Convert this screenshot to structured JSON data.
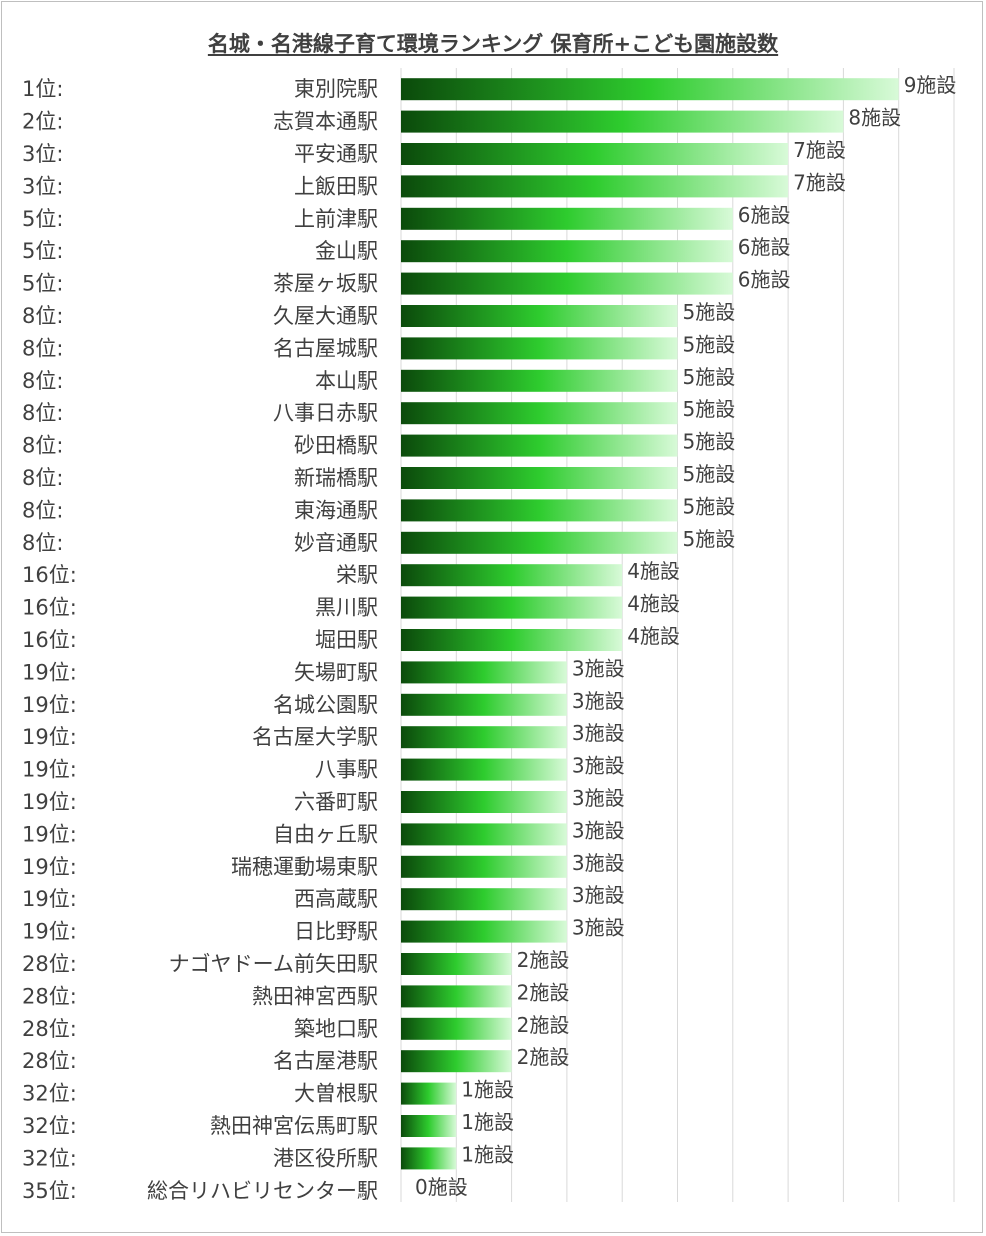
{
  "title": "名城・名港線子育て環境ランキング 保育所+こども園施設数",
  "colors": {
    "bar_dark": "#0b4a0b",
    "bar_mid": "#2ecc2e",
    "bar_light": "#d8fad8",
    "grid": "#d9d9d9",
    "text": "#404040"
  },
  "chart_data": {
    "type": "bar",
    "orientation": "horizontal",
    "title": "名城・名港線子育て環境ランキング 保育所+こども園施設数",
    "value_suffix": "施設",
    "xlim": [
      0,
      10
    ],
    "grid": true,
    "rows": [
      {
        "rank": "1位:",
        "station": "東別院駅",
        "value": 9
      },
      {
        "rank": "2位:",
        "station": "志賀本通駅",
        "value": 8
      },
      {
        "rank": "3位:",
        "station": "平安通駅",
        "value": 7
      },
      {
        "rank": "3位:",
        "station": "上飯田駅",
        "value": 7
      },
      {
        "rank": "5位:",
        "station": "上前津駅",
        "value": 6
      },
      {
        "rank": "5位:",
        "station": "金山駅",
        "value": 6
      },
      {
        "rank": "5位:",
        "station": "茶屋ヶ坂駅",
        "value": 6
      },
      {
        "rank": "8位:",
        "station": "久屋大通駅",
        "value": 5
      },
      {
        "rank": "8位:",
        "station": "名古屋城駅",
        "value": 5
      },
      {
        "rank": "8位:",
        "station": "本山駅",
        "value": 5
      },
      {
        "rank": "8位:",
        "station": "八事日赤駅",
        "value": 5
      },
      {
        "rank": "8位:",
        "station": "砂田橋駅",
        "value": 5
      },
      {
        "rank": "8位:",
        "station": "新瑞橋駅",
        "value": 5
      },
      {
        "rank": "8位:",
        "station": "東海通駅",
        "value": 5
      },
      {
        "rank": "8位:",
        "station": "妙音通駅",
        "value": 5
      },
      {
        "rank": "16位:",
        "station": "栄駅",
        "value": 4
      },
      {
        "rank": "16位:",
        "station": "黒川駅",
        "value": 4
      },
      {
        "rank": "16位:",
        "station": "堀田駅",
        "value": 4
      },
      {
        "rank": "19位:",
        "station": "矢場町駅",
        "value": 3
      },
      {
        "rank": "19位:",
        "station": "名城公園駅",
        "value": 3
      },
      {
        "rank": "19位:",
        "station": "名古屋大学駅",
        "value": 3
      },
      {
        "rank": "19位:",
        "station": "八事駅",
        "value": 3
      },
      {
        "rank": "19位:",
        "station": "六番町駅",
        "value": 3
      },
      {
        "rank": "19位:",
        "station": "自由ヶ丘駅",
        "value": 3
      },
      {
        "rank": "19位:",
        "station": "瑞穂運動場東駅",
        "value": 3
      },
      {
        "rank": "19位:",
        "station": "西高蔵駅",
        "value": 3
      },
      {
        "rank": "19位:",
        "station": "日比野駅",
        "value": 3
      },
      {
        "rank": "28位:",
        "station": "ナゴヤドーム前矢田駅",
        "value": 2
      },
      {
        "rank": "28位:",
        "station": "熱田神宮西駅",
        "value": 2
      },
      {
        "rank": "28位:",
        "station": "築地口駅",
        "value": 2
      },
      {
        "rank": "28位:",
        "station": "名古屋港駅",
        "value": 2
      },
      {
        "rank": "32位:",
        "station": "大曽根駅",
        "value": 1
      },
      {
        "rank": "32位:",
        "station": "熱田神宮伝馬町駅",
        "value": 1
      },
      {
        "rank": "32位:",
        "station": "港区役所駅",
        "value": 1
      },
      {
        "rank": "35位:",
        "station": "総合リハビリセンター駅",
        "value": 0
      }
    ]
  }
}
